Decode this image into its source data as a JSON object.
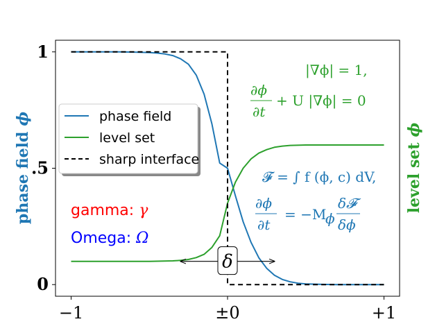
{
  "chart_data": {
    "type": "line",
    "xlim": [
      -1.1,
      1.1
    ],
    "ylim": [
      -0.05,
      1.05
    ],
    "x_ticks": [
      {
        "value": -1,
        "label": "−1"
      },
      {
        "value": 0,
        "label": "±0"
      },
      {
        "value": 1,
        "label": "+1"
      }
    ],
    "y_ticks": [
      {
        "value": 0,
        "label": "0"
      },
      {
        "value": 0.5,
        "label": ".5"
      },
      {
        "value": 1,
        "label": "1"
      }
    ],
    "ylabel_left": {
      "text": "phase field",
      "symbol": "ϕ",
      "color": "#1f77b4"
    },
    "ylabel_right": {
      "text": "level set",
      "symbol": "ϕ",
      "color": "#2ca02c"
    },
    "legend": {
      "placement": "center-left",
      "entries": [
        "phase field",
        "level set",
        "sharp interface"
      ]
    },
    "series": [
      {
        "name": "phase field",
        "color": "#1f77b4",
        "x": [
          -1.0,
          -0.9,
          -0.8,
          -0.7,
          -0.6,
          -0.5,
          -0.45,
          -0.4,
          -0.35,
          -0.3,
          -0.25,
          -0.2,
          -0.15,
          -0.1,
          -0.05,
          0.0,
          0.05,
          0.1,
          0.15,
          0.2,
          0.25,
          0.3,
          0.35,
          0.4,
          0.45,
          0.5,
          0.6,
          0.7,
          0.8,
          0.9,
          1.0
        ],
        "y": [
          1.0,
          1.0,
          1.0,
          1.0,
          0.999,
          0.997,
          0.995,
          0.991,
          0.984,
          0.97,
          0.947,
          0.9,
          0.818,
          0.69,
          0.522,
          0.5,
          0.382,
          0.27,
          0.182,
          0.115,
          0.07,
          0.04,
          0.022,
          0.012,
          0.006,
          0.003,
          0.001,
          0.0,
          0.0,
          0.0,
          0.0
        ]
      },
      {
        "name": "level set",
        "color": "#2ca02c",
        "x": [
          -1.0,
          -0.9,
          -0.8,
          -0.7,
          -0.6,
          -0.5,
          -0.4,
          -0.35,
          -0.3,
          -0.25,
          -0.2,
          -0.15,
          -0.1,
          -0.05,
          0.0,
          0.05,
          0.1,
          0.15,
          0.2,
          0.25,
          0.3,
          0.35,
          0.4,
          0.5,
          0.6,
          0.7,
          0.8,
          0.9,
          1.0
        ],
        "y": [
          0.1,
          0.1,
          0.1,
          0.1,
          0.1,
          0.1,
          0.101,
          0.102,
          0.104,
          0.108,
          0.116,
          0.13,
          0.16,
          0.21,
          0.35,
          0.44,
          0.5,
          0.54,
          0.565,
          0.58,
          0.59,
          0.595,
          0.598,
          0.6,
          0.6,
          0.6,
          0.6,
          0.6,
          0.6
        ]
      },
      {
        "name": "sharp interface",
        "color": "#000000",
        "dashed": true,
        "x": [
          -1.0,
          0.0,
          0.0,
          1.0
        ],
        "y": [
          1.0,
          1.0,
          0.0,
          0.0
        ]
      }
    ],
    "annotations": {
      "gamma_text": "gamma: ",
      "gamma_symbol": "γ",
      "gamma_color": "#ff0000",
      "omega_text": "Omega: ",
      "omega_symbol": "Ω",
      "omega_color": "#0000ff",
      "delta_symbol": "δ",
      "delta_arrow_x": [
        -0.3,
        0.3
      ],
      "delta_arrow_y": 0.1,
      "eikonal_color": "#2ca02c",
      "eikonal_line1": "|∇ϕ| = 1,",
      "eikonal_line2_num": "∂ϕ",
      "eikonal_line2_den": "∂t",
      "eikonal_line2_rest": "+ U |∇ϕ| = 0",
      "energy_color": "#1f77b4",
      "energy_line1": "𝓕 = ∫ f (ϕ, c) dV,",
      "energy_line2_num": "∂ϕ",
      "energy_line2_den": "∂t",
      "energy_line2_mid": "= −M",
      "energy_line2_sub": "ϕ",
      "energy_line2_fnum": "δ𝓕",
      "energy_line2_fden": "δϕ"
    }
  }
}
